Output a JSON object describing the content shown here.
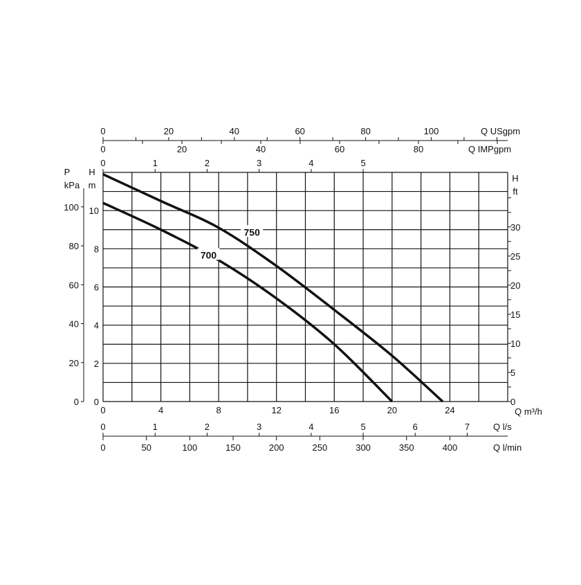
{
  "chart_data": {
    "type": "line",
    "title": "",
    "xlabel": "Q m³/h",
    "ylabel": "H m",
    "xlim": [
      0,
      28
    ],
    "ylim": [
      0,
      12
    ],
    "grid": true,
    "x_ticks": [
      0,
      4,
      8,
      12,
      16,
      20,
      24
    ],
    "y_ticks": [
      0,
      2,
      4,
      6,
      8,
      10
    ],
    "series": [
      {
        "name": "700",
        "x": [
          0,
          4,
          8,
          12,
          16,
          20
        ],
        "y": [
          10.4,
          9.0,
          7.4,
          5.4,
          3.0,
          0
        ]
      },
      {
        "name": "750",
        "x": [
          0,
          4,
          8,
          12,
          16,
          20,
          23.5
        ],
        "y": [
          11.9,
          10.5,
          9.1,
          7.1,
          4.8,
          2.4,
          0
        ]
      }
    ],
    "secondary_axes": {
      "usgpm": {
        "label": "Q USgpm",
        "ticks": [
          0,
          20,
          40,
          60,
          80,
          100
        ]
      },
      "impgpm": {
        "label": "Q IMPgpm",
        "ticks": [
          0,
          20,
          40,
          60,
          80
        ]
      },
      "ls_top": {
        "ticks": [
          0,
          1,
          2,
          3,
          4,
          5
        ]
      },
      "ls_bottom": {
        "label": "Q l/s",
        "ticks": [
          0,
          1,
          2,
          3,
          4,
          5,
          6,
          7
        ]
      },
      "lmin": {
        "label": "Q l/min",
        "ticks": [
          0,
          50,
          100,
          150,
          200,
          250,
          300,
          350,
          400
        ]
      },
      "kpa": {
        "label_top": "P",
        "label_unit": "kPa",
        "ticks": [
          0,
          20,
          40,
          60,
          80,
          100
        ]
      },
      "h_m": {
        "label_top": "H",
        "label_unit": "m"
      },
      "ft": {
        "label_top": "H",
        "label_unit": "ft",
        "ticks": [
          0,
          5,
          10,
          15,
          20,
          25,
          30
        ]
      }
    }
  }
}
